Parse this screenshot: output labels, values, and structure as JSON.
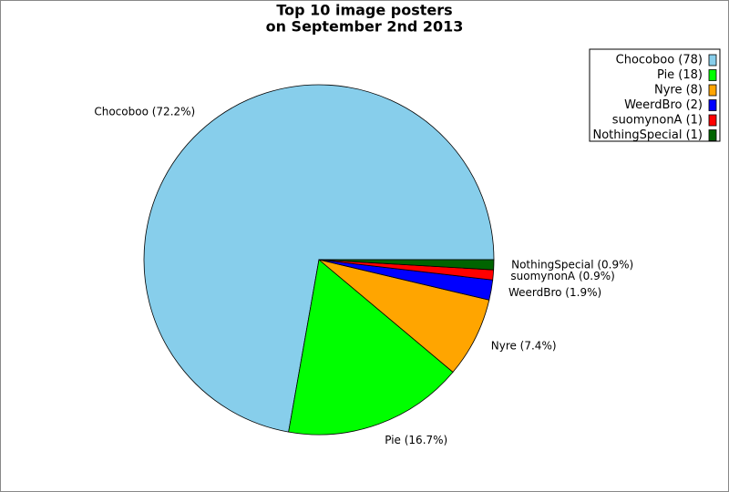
{
  "chart_data": {
    "type": "pie",
    "title": [
      "Top 10 image posters",
      "on September 2nd 2013"
    ],
    "categories": [
      "Chocoboo (78)",
      "Pie (18)",
      "Nyre (8)",
      "WeerdBro (2)",
      "suomynonA (1)",
      "NothingSpecial (1)"
    ],
    "values": [
      78,
      18,
      8,
      2,
      1,
      1
    ],
    "value_labels": [
      "Chocoboo (72.2%)",
      "Pie (16.7%)",
      "Nyre (7.4%)",
      "WeerdBro (1.9%)",
      "suomynonA (0.9%)",
      "NothingSpecial (0.9%)"
    ],
    "colors": [
      "#87ceeb",
      "#00ff00",
      "#ffa500",
      "#0000ff",
      "#ff0000",
      "#006400"
    ],
    "legend": "upper right"
  }
}
